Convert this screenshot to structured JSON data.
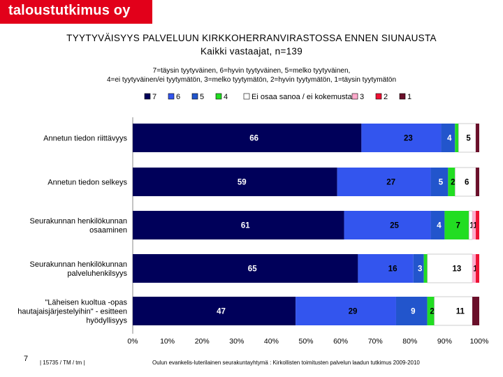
{
  "brand": {
    "name": "taloustutkimus oy"
  },
  "header": {
    "title": "TYYTYVÄISYYS PALVELUUN KIRKKOHERRANVIRASTOSSA ENNEN SIUNAUSTA",
    "subtitle": "Kaikki  vastaajat, n=139"
  },
  "scale_note": {
    "line1": "7=täysin tyytyväinen, 6=hyvin tyytyväinen, 5=melko tyytyväinen,",
    "line2": "4=ei tyytyväinen/ei tyytymätön, 3=melko tyytymätön, 2=hyvin tyytymätön, 1=täysin tyytymätön"
  },
  "footer": {
    "page": "7",
    "code": "|  15735 / TM / tm  |",
    "source": "Oulun evankelis-luterilainen seurakuntayhtymä : Kirkollisten toimitusten palvelun laadun tutkimus 2009-2010"
  },
  "chart_data": {
    "type": "bar",
    "orientation": "horizontal",
    "stacked": true,
    "xlim": [
      0,
      100
    ],
    "ticks": [
      "0%",
      "10%",
      "20%",
      "30%",
      "40%",
      "50%",
      "60%",
      "70%",
      "80%",
      "90%",
      "100%"
    ],
    "legend_position": "top",
    "categories": [
      [
        "Annetun tiedon riittävyys"
      ],
      [
        "Annetun tiedon selkeys"
      ],
      [
        "Seurakunnan henkilökunnan",
        "osaaminen"
      ],
      [
        "Seurakunnan henkilökunnan",
        "palveluhenkilsyys"
      ],
      [
        "\"Läheisen kuoltua -opas",
        "hautajaisjärjestelyihin\" - esitteen",
        "hyödyllisyys"
      ]
    ],
    "series": [
      {
        "name": "7",
        "color": "#00005a",
        "label_color": "#ffffff",
        "values": [
          66,
          59,
          61,
          65,
          47
        ]
      },
      {
        "name": "6",
        "color": "#3355ee",
        "label_color": "#000000",
        "values": [
          23,
          27,
          25,
          16,
          29
        ]
      },
      {
        "name": "5",
        "color": "#2255cc",
        "label_color": "#ffffff",
        "values": [
          4,
          5,
          4,
          3,
          9
        ]
      },
      {
        "name": "4",
        "color": "#22dd22",
        "label_color": "#000000",
        "values": [
          1,
          2,
          7,
          1,
          2
        ]
      },
      {
        "name": "Ei osaa sanoa / ei kokemusta",
        "color": "#ffffff",
        "label_color": "#000000",
        "values": [
          5,
          6,
          1,
          13,
          11
        ]
      },
      {
        "name": "3",
        "color": "#ffaacc",
        "label_color": "#000000",
        "values": [
          0,
          0,
          1,
          1,
          0
        ]
      },
      {
        "name": "2",
        "color": "#ee1133",
        "label_color": "#000000",
        "values": [
          0,
          0,
          1,
          1,
          0
        ]
      },
      {
        "name": "1",
        "color": "#6a0f2a",
        "label_color": "#000000",
        "values": [
          1,
          1,
          0,
          0,
          2
        ]
      }
    ],
    "data_labels": [
      [
        "66",
        "23",
        "4",
        "",
        "5",
        "",
        "",
        ""
      ],
      [
        "59",
        "27",
        "5",
        "2",
        "6",
        "",
        "",
        ""
      ],
      [
        "61",
        "25",
        "4",
        "7",
        "1",
        "1",
        "",
        ""
      ],
      [
        "65",
        "16",
        "3",
        "",
        "13",
        "1",
        "",
        ""
      ],
      [
        "47",
        "29",
        "9",
        "2",
        "11",
        "",
        "",
        ""
      ]
    ]
  }
}
